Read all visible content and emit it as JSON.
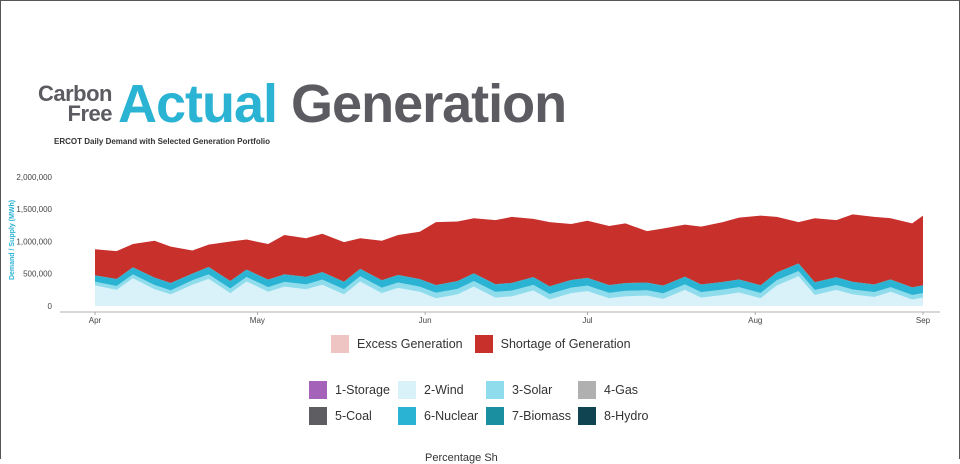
{
  "logo": {
    "line1": "Carbon",
    "line2": "Free",
    "word1": "Actual",
    "word2": "Generation"
  },
  "chart_data": {
    "type": "area",
    "title": "ERCOT Daily Demand with Selected Generation Portfolio",
    "ylabel": "Demand / Supply (MWh)",
    "xlabel": "",
    "ylim": [
      0,
      2200000
    ],
    "yticks": [
      0,
      500000,
      1000000,
      1500000,
      2000000
    ],
    "ytick_labels": [
      "0",
      "500,000",
      "1,000,000",
      "1,500,000",
      "2,000,000"
    ],
    "xlim": [
      "2021-04-01",
      "2021-09-01"
    ],
    "xtick_labels": [
      {
        "date": "2021-04-01",
        "label": "Apr"
      },
      {
        "date": "2021-05-01",
        "label": "May"
      },
      {
        "date": "2021-06-01",
        "label": "Jun"
      },
      {
        "date": "2021-07-01",
        "label": "Jul"
      },
      {
        "date": "2021-08-01",
        "label": "Aug"
      },
      {
        "date": "2021-09-01",
        "label": "Sep"
      }
    ],
    "x": [
      "2021-04-01",
      "2021-04-05",
      "2021-04-08",
      "2021-04-12",
      "2021-04-15",
      "2021-04-19",
      "2021-04-22",
      "2021-04-26",
      "2021-04-29",
      "2021-05-03",
      "2021-05-06",
      "2021-05-10",
      "2021-05-13",
      "2021-05-17",
      "2021-05-20",
      "2021-05-24",
      "2021-05-27",
      "2021-05-31",
      "2021-06-03",
      "2021-06-07",
      "2021-06-10",
      "2021-06-14",
      "2021-06-17",
      "2021-06-21",
      "2021-06-24",
      "2021-06-28",
      "2021-07-01",
      "2021-07-05",
      "2021-07-08",
      "2021-07-12",
      "2021-07-15",
      "2021-07-19",
      "2021-07-22",
      "2021-07-26",
      "2021-07-29",
      "2021-08-02",
      "2021-08-05",
      "2021-08-09",
      "2021-08-12",
      "2021-08-16",
      "2021-08-19",
      "2021-08-23",
      "2021-08-26",
      "2021-08-30",
      "2021-09-01"
    ],
    "demand": [
      880000,
      850000,
      960000,
      1010000,
      920000,
      860000,
      950000,
      1000000,
      1030000,
      960000,
      1100000,
      1050000,
      1120000,
      990000,
      1050000,
      1010000,
      1100000,
      1150000,
      1300000,
      1310000,
      1360000,
      1330000,
      1380000,
      1350000,
      1300000,
      1270000,
      1320000,
      1240000,
      1280000,
      1160000,
      1200000,
      1260000,
      1230000,
      1300000,
      1370000,
      1400000,
      1380000,
      1300000,
      1360000,
      1330000,
      1420000,
      1380000,
      1360000,
      1280000,
      1400000
    ],
    "series": [
      {
        "name": "1-Storage",
        "color": "#a463b8",
        "values": [
          0,
          0,
          0,
          0,
          0,
          0,
          0,
          0,
          0,
          0,
          0,
          0,
          0,
          0,
          0,
          0,
          0,
          0,
          0,
          0,
          0,
          0,
          0,
          0,
          0,
          0,
          0,
          0,
          0,
          0,
          0,
          0,
          0,
          0,
          0,
          0,
          0,
          0,
          0,
          0,
          0,
          0,
          0,
          0,
          0
        ]
      },
      {
        "name": "2-Wind",
        "color": "#d9f1f8",
        "values": [
          320000,
          250000,
          430000,
          260000,
          180000,
          330000,
          420000,
          200000,
          380000,
          220000,
          300000,
          260000,
          330000,
          180000,
          380000,
          200000,
          280000,
          220000,
          120000,
          180000,
          300000,
          130000,
          150000,
          240000,
          100000,
          200000,
          230000,
          120000,
          150000,
          160000,
          110000,
          250000,
          130000,
          170000,
          210000,
          120000,
          320000,
          460000,
          170000,
          250000,
          180000,
          140000,
          220000,
          100000,
          130000
        ]
      },
      {
        "name": "3-Solar",
        "color": "#8fdcec",
        "values": [
          55000,
          60000,
          60000,
          65000,
          62000,
          68000,
          70000,
          72000,
          70000,
          72000,
          74000,
          76000,
          78000,
          80000,
          80000,
          82000,
          84000,
          80000,
          85000,
          86000,
          86000,
          88000,
          88000,
          88000,
          86000,
          84000,
          86000,
          84000,
          85000,
          84000,
          86000,
          85000,
          84000,
          83000,
          82000,
          82000,
          80000,
          80000,
          78000,
          76000,
          75000,
          74000,
          72000,
          70000,
          70000
        ]
      },
      {
        "name": "4-Gas",
        "color": "#b0b0b0",
        "values": [
          0,
          0,
          0,
          0,
          0,
          0,
          0,
          0,
          0,
          0,
          0,
          0,
          0,
          0,
          0,
          0,
          0,
          0,
          0,
          0,
          0,
          0,
          0,
          0,
          0,
          0,
          0,
          0,
          0,
          0,
          0,
          0,
          0,
          0,
          0,
          0,
          0,
          0,
          0,
          0,
          0,
          0,
          0,
          0,
          0
        ]
      },
      {
        "name": "5-Coal",
        "color": "#5e5e62",
        "values": [
          0,
          0,
          0,
          0,
          0,
          0,
          0,
          0,
          0,
          0,
          0,
          0,
          0,
          0,
          0,
          0,
          0,
          0,
          0,
          0,
          0,
          0,
          0,
          0,
          0,
          0,
          0,
          0,
          0,
          0,
          0,
          0,
          0,
          0,
          0,
          0,
          0,
          0,
          0,
          0,
          0,
          0,
          0,
          0,
          0
        ]
      },
      {
        "name": "6-Nuclear",
        "color": "#2ab3d3",
        "values": [
          95000,
          105000,
          105000,
          110000,
          110000,
          100000,
          110000,
          112000,
          110000,
          112000,
          112000,
          112000,
          112000,
          112000,
          112000,
          112000,
          112000,
          112000,
          115000,
          115000,
          115000,
          115000,
          115000,
          115000,
          115000,
          115000,
          115000,
          115000,
          115000,
          115000,
          115000,
          115000,
          115000,
          115000,
          115000,
          115000,
          115000,
          115000,
          115000,
          115000,
          115000,
          115000,
          115000,
          115000,
          115000
        ]
      },
      {
        "name": "7-Biomass",
        "color": "#1a8fa0",
        "values": [
          4000,
          4000,
          4000,
          4000,
          4000,
          4000,
          4000,
          4000,
          4000,
          4000,
          4000,
          4000,
          4000,
          4000,
          4000,
          4000,
          4000,
          4000,
          4000,
          4000,
          4000,
          4000,
          4000,
          4000,
          4000,
          4000,
          4000,
          4000,
          4000,
          4000,
          4000,
          4000,
          4000,
          4000,
          4000,
          4000,
          4000,
          4000,
          4000,
          4000,
          4000,
          4000,
          4000,
          4000,
          4000
        ]
      },
      {
        "name": "8-Hydro",
        "color": "#0f4450",
        "values": [
          2000,
          2000,
          2000,
          2000,
          2000,
          2000,
          2000,
          2000,
          2000,
          2000,
          2000,
          2000,
          2000,
          2000,
          2000,
          2000,
          2000,
          2000,
          2000,
          2000,
          2000,
          2000,
          2000,
          2000,
          2000,
          2000,
          2000,
          2000,
          2000,
          2000,
          2000,
          2000,
          2000,
          2000,
          2000,
          2000,
          2000,
          2000,
          2000,
          2000,
          2000,
          2000,
          2000,
          2000,
          2000
        ]
      }
    ],
    "balance_legend": [
      {
        "name": "Excess Generation",
        "color": "#eec5c2"
      },
      {
        "name": "Shortage of Generation",
        "color": "#c8302c"
      }
    ],
    "grid": false
  },
  "footer_text": "Percentage Sh"
}
